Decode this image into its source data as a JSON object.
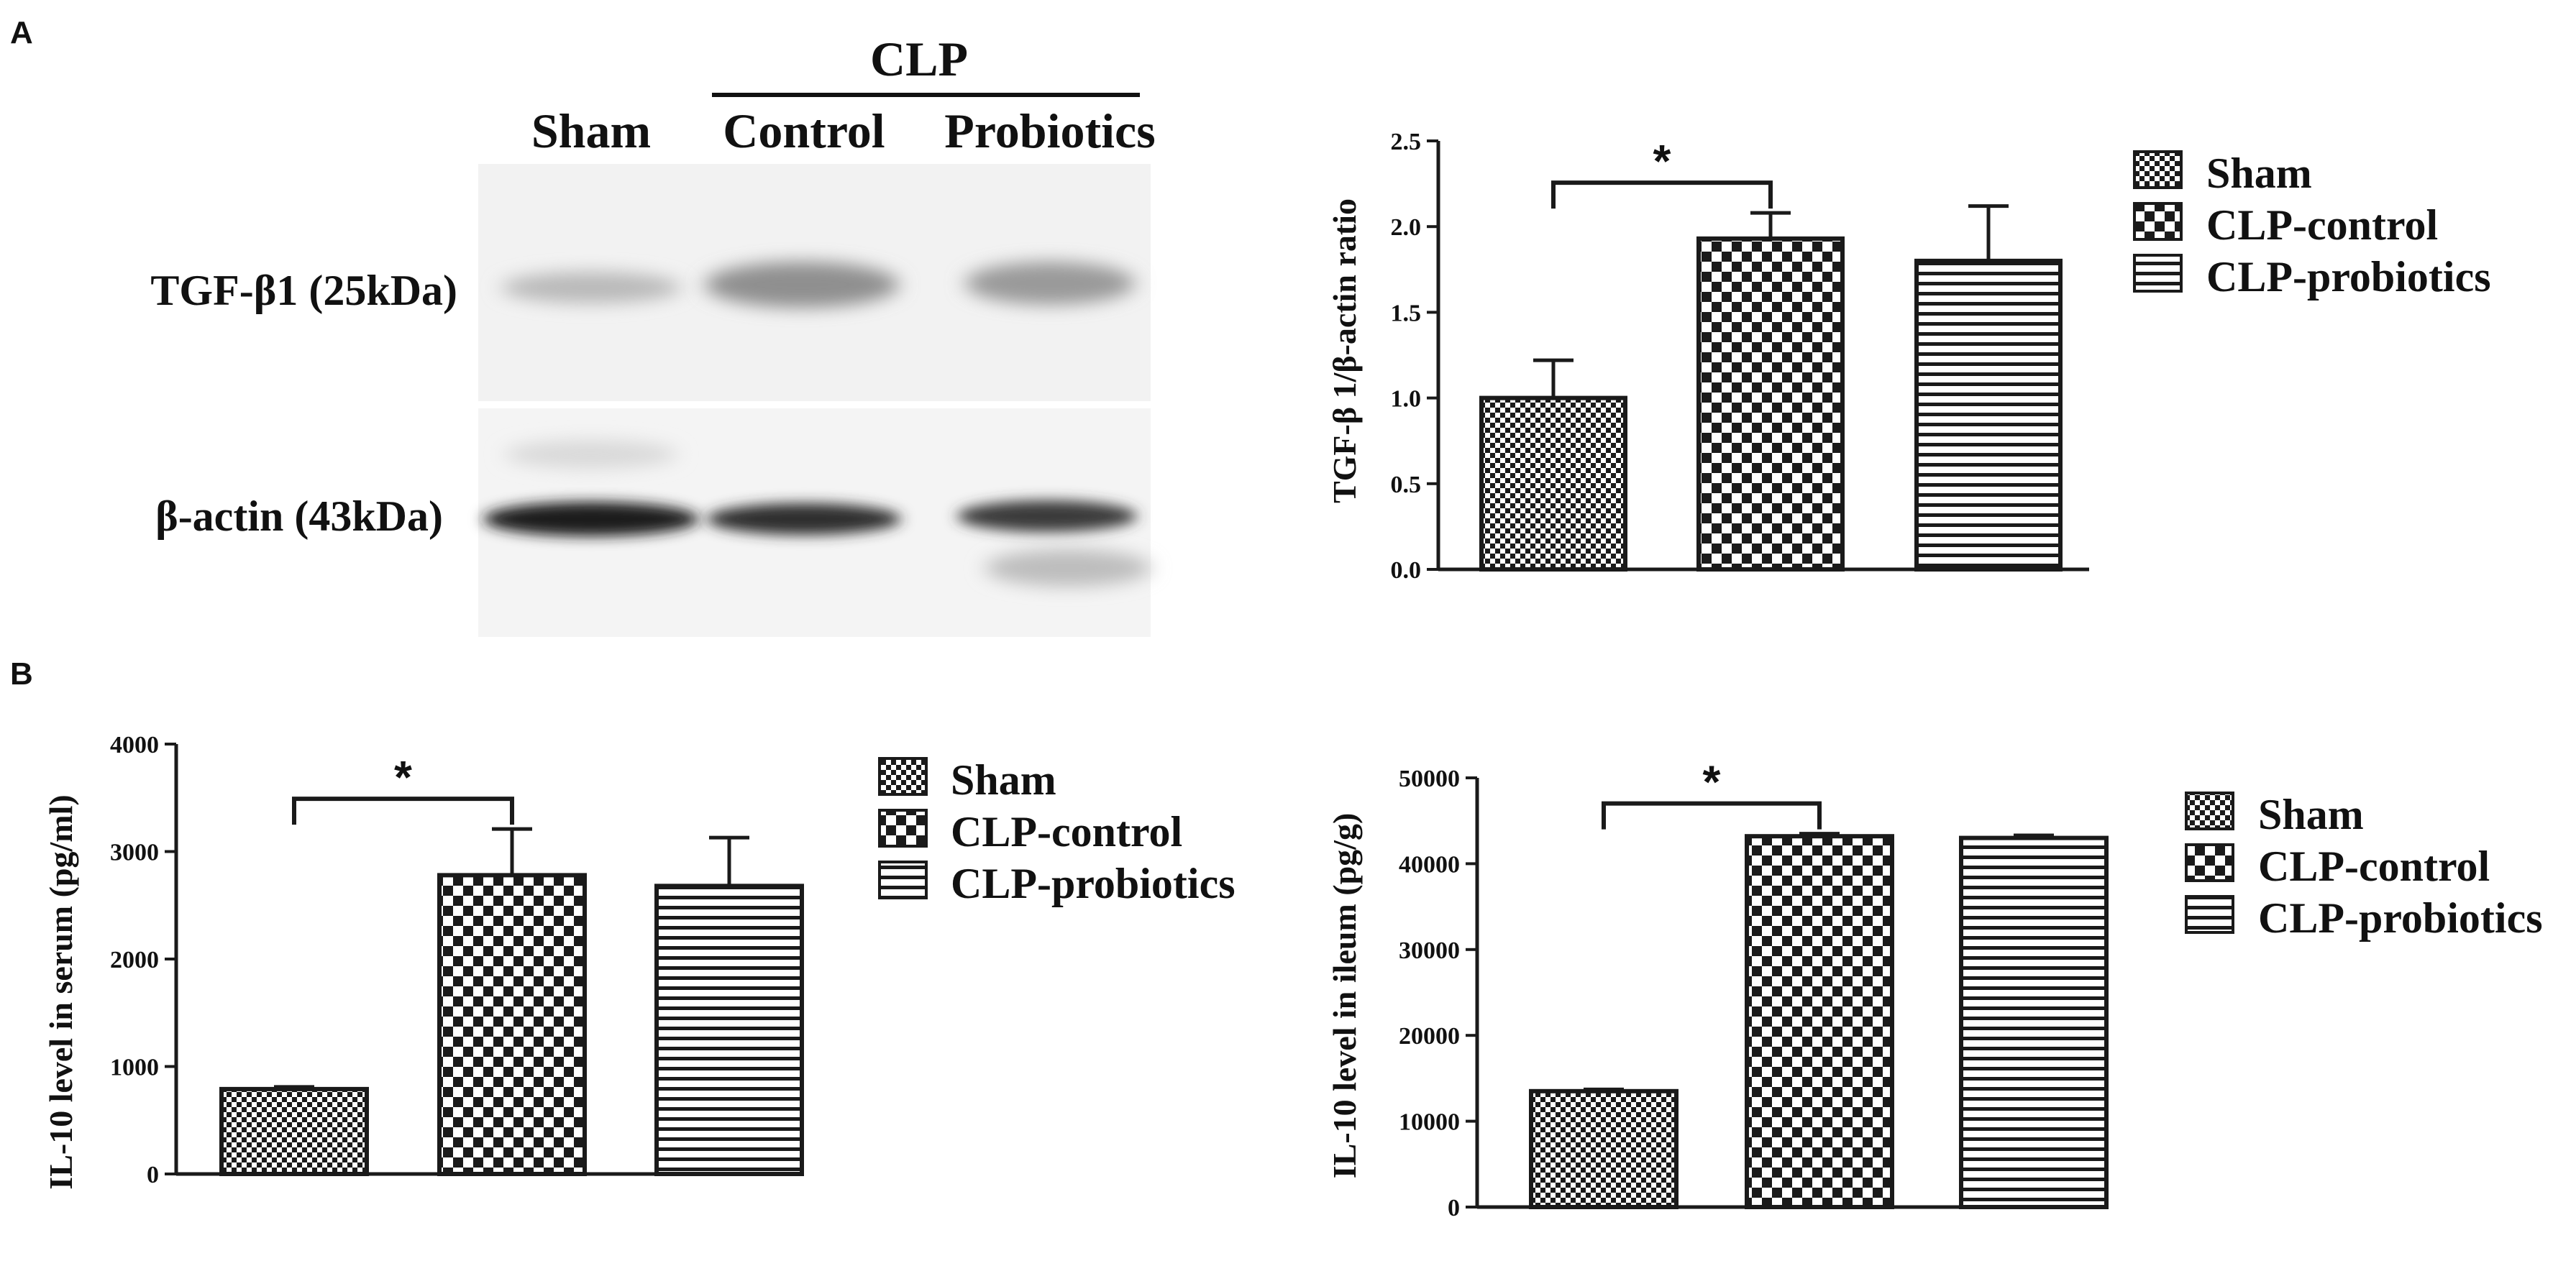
{
  "panel_labels": {
    "a": "A",
    "b": "B"
  },
  "blot": {
    "group_header": "CLP",
    "lanes": [
      "Sham",
      "Control",
      "Probiotics"
    ],
    "rows": [
      "TGF-β1 (25kDa)",
      "β-actin (43kDa)"
    ]
  },
  "legend": [
    "Sham",
    "CLP-control",
    "CLP-probiotics"
  ],
  "significance_mark": "*",
  "colors": {
    "ink": "#1a1a1a",
    "bar_fill": "#ffffff",
    "blot_bg": "#f3f3f3"
  },
  "chart_data": [
    {
      "type": "bar",
      "ylabel": "TGF-β 1/β-actin ratio",
      "categories": [
        "Sham",
        "CLP-control",
        "CLP-probiotics"
      ],
      "values": [
        1.0,
        1.93,
        1.8
      ],
      "errors": [
        0.22,
        0.15,
        0.32
      ],
      "ylim": [
        0,
        2.5
      ],
      "yticks": [
        "0.0",
        "0.5",
        "1.0",
        "1.5",
        "2.0",
        "2.5"
      ],
      "patterns": [
        "checker-fine",
        "checker-coarse",
        "horizontal-lines"
      ],
      "significance": [
        {
          "from": "Sham",
          "to": "CLP-control",
          "label": "*"
        }
      ]
    },
    {
      "type": "bar",
      "ylabel": "IL-10 level in serum (pg/ml)",
      "categories": [
        "Sham",
        "CLP-control",
        "CLP-probiotics"
      ],
      "values": [
        790,
        2780,
        2680
      ],
      "errors": [
        20,
        430,
        450
      ],
      "ylim": [
        0,
        4000
      ],
      "yticks": [
        "0",
        "1000",
        "2000",
        "3000",
        "4000"
      ],
      "patterns": [
        "checker-fine",
        "checker-coarse",
        "horizontal-lines"
      ],
      "significance": [
        {
          "from": "Sham",
          "to": "CLP-control",
          "label": "*"
        }
      ]
    },
    {
      "type": "bar",
      "ylabel": "IL-10 level in ileum (pg/g)",
      "categories": [
        "Sham",
        "CLP-control",
        "CLP-probiotics"
      ],
      "values": [
        13500,
        43200,
        43000
      ],
      "errors": [
        200,
        300,
        300
      ],
      "ylim": [
        0,
        50000
      ],
      "yticks": [
        "0",
        "10000",
        "20000",
        "30000",
        "40000",
        "50000"
      ],
      "patterns": [
        "checker-fine",
        "checker-coarse",
        "horizontal-lines"
      ],
      "significance": [
        {
          "from": "Sham",
          "to": "CLP-control",
          "label": "*"
        }
      ]
    }
  ]
}
